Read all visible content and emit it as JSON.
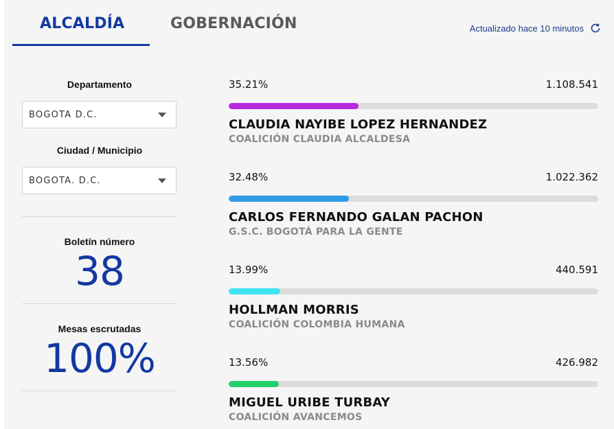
{
  "tabs": [
    {
      "label": "ALCALDÍA",
      "active": true
    },
    {
      "label": "GOBERNACIÓN",
      "active": false
    }
  ],
  "status": {
    "updated_text": "Actualizado hace 10 minutos",
    "icon": "refresh-icon"
  },
  "filters": {
    "department_label": "Departamento",
    "department_value": "BOGOTA D.C.",
    "city_label": "Ciudad / Municipio",
    "city_value": "BOGOTA. D.C."
  },
  "stats": {
    "bulletin_label": "Boletín número",
    "bulletin_number": "38",
    "tables_label": "Mesas escrutadas",
    "tables_value": "100%"
  },
  "candidates": [
    {
      "percent_text": "35.21%",
      "percent": 35.21,
      "votes": "1.108.541",
      "name": "CLAUDIA NAYIBE LOPEZ HERNANDEZ",
      "party": "COALICIÓN CLAUDIA ALCALDESA",
      "color": "#b62be0"
    },
    {
      "percent_text": "32.48%",
      "percent": 32.48,
      "votes": "1.022.362",
      "name": "CARLOS FERNANDO GALAN PACHON",
      "party": "G.S.C. BOGOTÁ PARA LA GENTE",
      "color": "#2f9be6"
    },
    {
      "percent_text": "13.99%",
      "percent": 13.99,
      "votes": "440.591",
      "name": "HOLLMAN MORRIS",
      "party": "COALICIÓN COLOMBIA HUMANA",
      "color": "#3ee6f2"
    },
    {
      "percent_text": "13.56%",
      "percent": 13.56,
      "votes": "426.982",
      "name": "MIGUEL URIBE TURBAY",
      "party": "COALICIÓN AVANCEMOS",
      "color": "#22d06a"
    }
  ]
}
